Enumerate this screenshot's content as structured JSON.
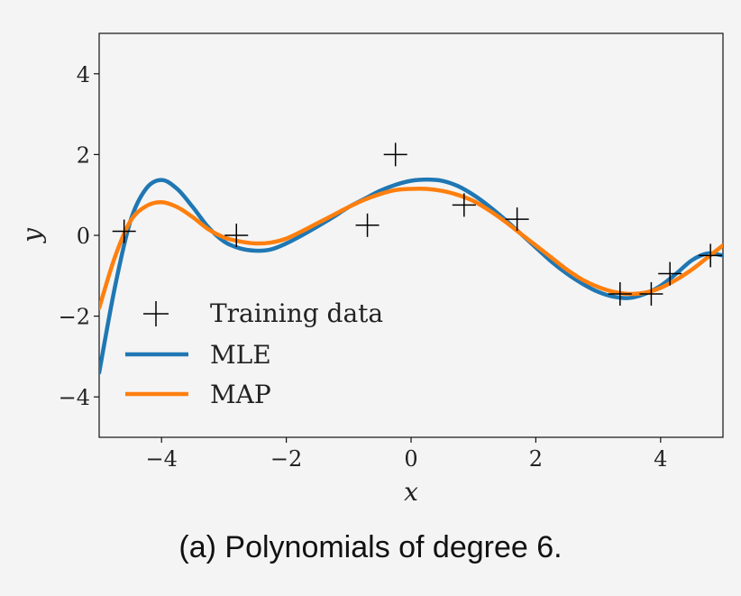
{
  "caption": "(a) Polynomials of degree 6.",
  "chart_data": {
    "type": "line",
    "xlabel": "x",
    "ylabel": "y",
    "xlim": [
      -5,
      5
    ],
    "ylim": [
      -5,
      5
    ],
    "xticks": [
      -4,
      -2,
      0,
      2,
      4
    ],
    "xtick_labels": [
      "−4",
      "−2",
      "0",
      "2",
      "4"
    ],
    "yticks": [
      -4,
      -2,
      0,
      2,
      4
    ],
    "ytick_labels": [
      "−4",
      "−2",
      "0",
      "2",
      "4"
    ],
    "grid": false,
    "legend_position": "lower-left",
    "training_data": {
      "name": "Training data",
      "color": "#000000",
      "marker": "plus",
      "points": [
        [
          -4.6,
          0.1
        ],
        [
          -2.8,
          0.0
        ],
        [
          -0.7,
          0.25
        ],
        [
          -0.25,
          2.0
        ],
        [
          0.85,
          0.75
        ],
        [
          1.7,
          0.4
        ],
        [
          3.35,
          -1.45
        ],
        [
          3.85,
          -1.45
        ],
        [
          4.15,
          -0.95
        ],
        [
          4.8,
          -0.5
        ]
      ]
    },
    "series": [
      {
        "name": "MLE",
        "color": "#1f77b4",
        "x": [
          -5,
          -4.75,
          -4.5,
          -4.25,
          -4,
          -3.75,
          -3.5,
          -3.25,
          -3,
          -2.75,
          -2.5,
          -2.25,
          -2,
          -1.75,
          -1.5,
          -1.25,
          -1,
          -0.75,
          -0.5,
          -0.25,
          0,
          0.25,
          0.5,
          0.75,
          1,
          1.25,
          1.5,
          1.75,
          2,
          2.25,
          2.5,
          2.75,
          3,
          3.25,
          3.5,
          3.75,
          4,
          4.25,
          4.5,
          4.75,
          5
        ],
        "values": [
          -3.4,
          -1.3,
          0.35,
          1.15,
          1.37,
          1.15,
          0.7,
          0.2,
          -0.15,
          -0.32,
          -0.38,
          -0.35,
          -0.2,
          0.0,
          0.22,
          0.45,
          0.7,
          0.9,
          1.1,
          1.25,
          1.35,
          1.38,
          1.35,
          1.22,
          1.0,
          0.72,
          0.4,
          0.05,
          -0.3,
          -0.65,
          -0.95,
          -1.2,
          -1.4,
          -1.52,
          -1.55,
          -1.45,
          -1.25,
          -0.95,
          -0.62,
          -0.45,
          -0.5
        ]
      },
      {
        "name": "MAP",
        "color": "#ff7f0e",
        "x": [
          -5,
          -4.75,
          -4.5,
          -4.25,
          -4,
          -3.75,
          -3.5,
          -3.25,
          -3,
          -2.75,
          -2.5,
          -2.25,
          -2,
          -1.75,
          -1.5,
          -1.25,
          -1,
          -0.75,
          -0.5,
          -0.25,
          0,
          0.25,
          0.5,
          0.75,
          1,
          1.25,
          1.5,
          1.75,
          2,
          2.25,
          2.5,
          2.75,
          3,
          3.25,
          3.5,
          3.75,
          4,
          4.25,
          4.5,
          4.75,
          5
        ],
        "values": [
          -1.8,
          -0.55,
          0.35,
          0.72,
          0.82,
          0.7,
          0.45,
          0.15,
          -0.05,
          -0.15,
          -0.2,
          -0.18,
          -0.08,
          0.1,
          0.3,
          0.5,
          0.7,
          0.88,
          1.02,
          1.12,
          1.15,
          1.15,
          1.1,
          1.0,
          0.85,
          0.62,
          0.35,
          0.05,
          -0.25,
          -0.55,
          -0.85,
          -1.1,
          -1.28,
          -1.4,
          -1.45,
          -1.42,
          -1.3,
          -1.1,
          -0.85,
          -0.55,
          -0.25
        ]
      }
    ]
  }
}
